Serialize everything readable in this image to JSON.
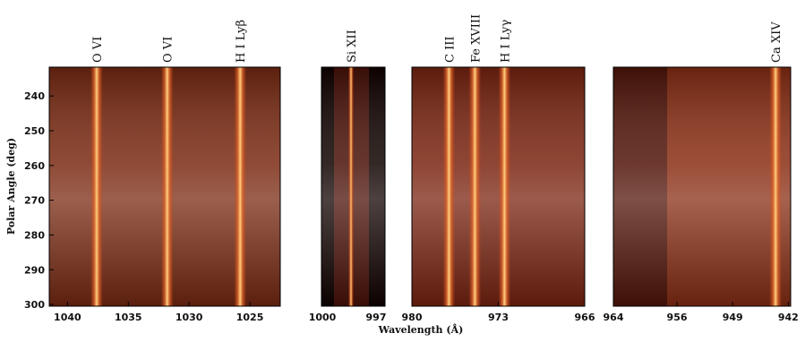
{
  "chart_data": {
    "type": "spectral-image",
    "ylabel": "Polar Angle (deg)",
    "xlabel": "Wavelength (Å)",
    "ylim": [
      231.7,
      300.5
    ],
    "yticks": [
      240,
      250,
      260,
      270,
      280,
      290,
      300
    ],
    "panels": [
      {
        "xlim": [
          1041.5,
          1022.5
        ],
        "xticks": [
          1040,
          1035,
          1030,
          1025
        ],
        "lines": [
          {
            "label": "O VI",
            "wavelength": 1037.6
          },
          {
            "label": "O VI",
            "wavelength": 1031.8
          },
          {
            "label": "H I Lyβ",
            "wavelength": 1025.8
          }
        ]
      },
      {
        "xlim": [
          1000.05,
          996.5
        ],
        "xticks": [
          1000,
          997
        ],
        "lines": [
          {
            "label": "Si XII",
            "wavelength": 998.4
          }
        ]
      },
      {
        "xlim": [
          980,
          966
        ],
        "xticks": [
          980,
          973,
          966
        ],
        "lines": [
          {
            "label": "C III",
            "wavelength": 977.0
          },
          {
            "label": "Fe XVIII",
            "wavelength": 974.9
          },
          {
            "label": "H I Lyγ",
            "wavelength": 972.5
          }
        ]
      },
      {
        "xlim": [
          964,
          941.7
        ],
        "xticks": [
          964,
          956,
          949,
          942
        ],
        "lines": [
          {
            "label": "Ca XIV",
            "wavelength": 943.6
          }
        ]
      }
    ]
  }
}
